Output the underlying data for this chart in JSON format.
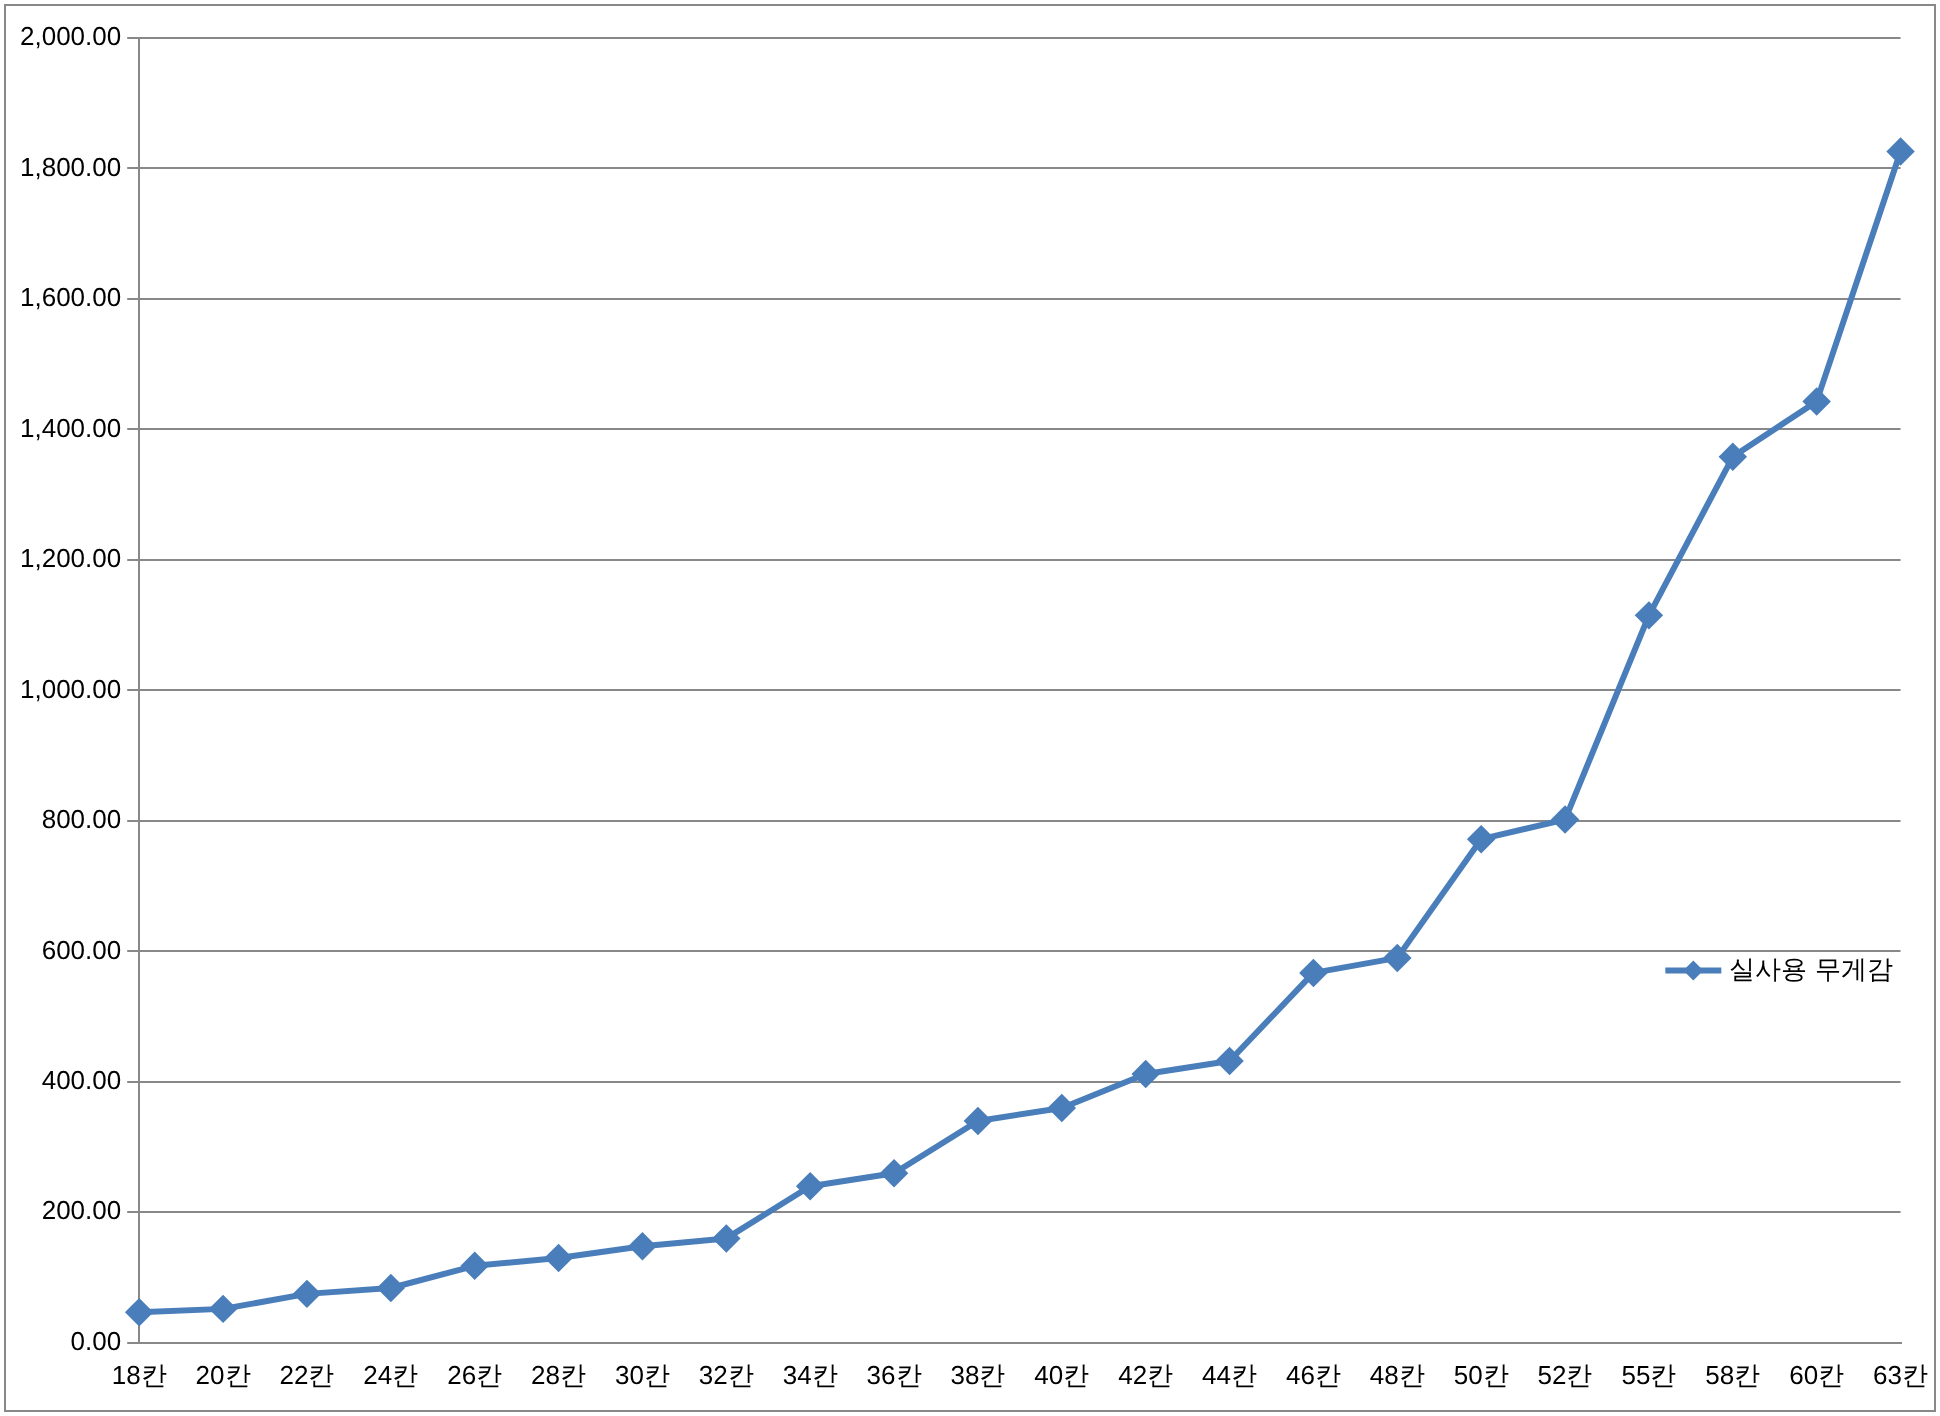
{
  "chart_data": {
    "type": "line",
    "categories": [
      "18칸",
      "20칸",
      "22칸",
      "24칸",
      "26칸",
      "28칸",
      "30칸",
      "32칸",
      "34칸",
      "36칸",
      "38칸",
      "40칸",
      "42칸",
      "44칸",
      "46칸",
      "48칸",
      "50칸",
      "52칸",
      "55칸",
      "58칸",
      "60칸",
      "63칸"
    ],
    "series": [
      {
        "name": "실사용 무게감",
        "color": "#4a7ebb",
        "values": [
          47,
          52,
          75,
          84,
          118,
          130,
          148,
          160,
          240,
          260,
          340,
          360,
          412,
          432,
          567,
          590,
          772,
          802,
          1115,
          1358,
          1443,
          1826
        ]
      }
    ],
    "ylim": [
      0,
      2000
    ],
    "yticks": [
      {
        "value": 0,
        "label": "0.00"
      },
      {
        "value": 200,
        "label": "200.00"
      },
      {
        "value": 400,
        "label": "400.00"
      },
      {
        "value": 600,
        "label": "600.00"
      },
      {
        "value": 800,
        "label": "800.00"
      },
      {
        "value": 1000,
        "label": "1,000.00"
      },
      {
        "value": 1200,
        "label": "1,200.00"
      },
      {
        "value": 1400,
        "label": "1,400.00"
      },
      {
        "value": 1600,
        "label": "1,600.00"
      },
      {
        "value": 1800,
        "label": "1,800.00"
      },
      {
        "value": 2000,
        "label": "2,000.00"
      }
    ],
    "grid": "y",
    "legend": "right",
    "marker": "diamond",
    "line_style": "solid"
  }
}
